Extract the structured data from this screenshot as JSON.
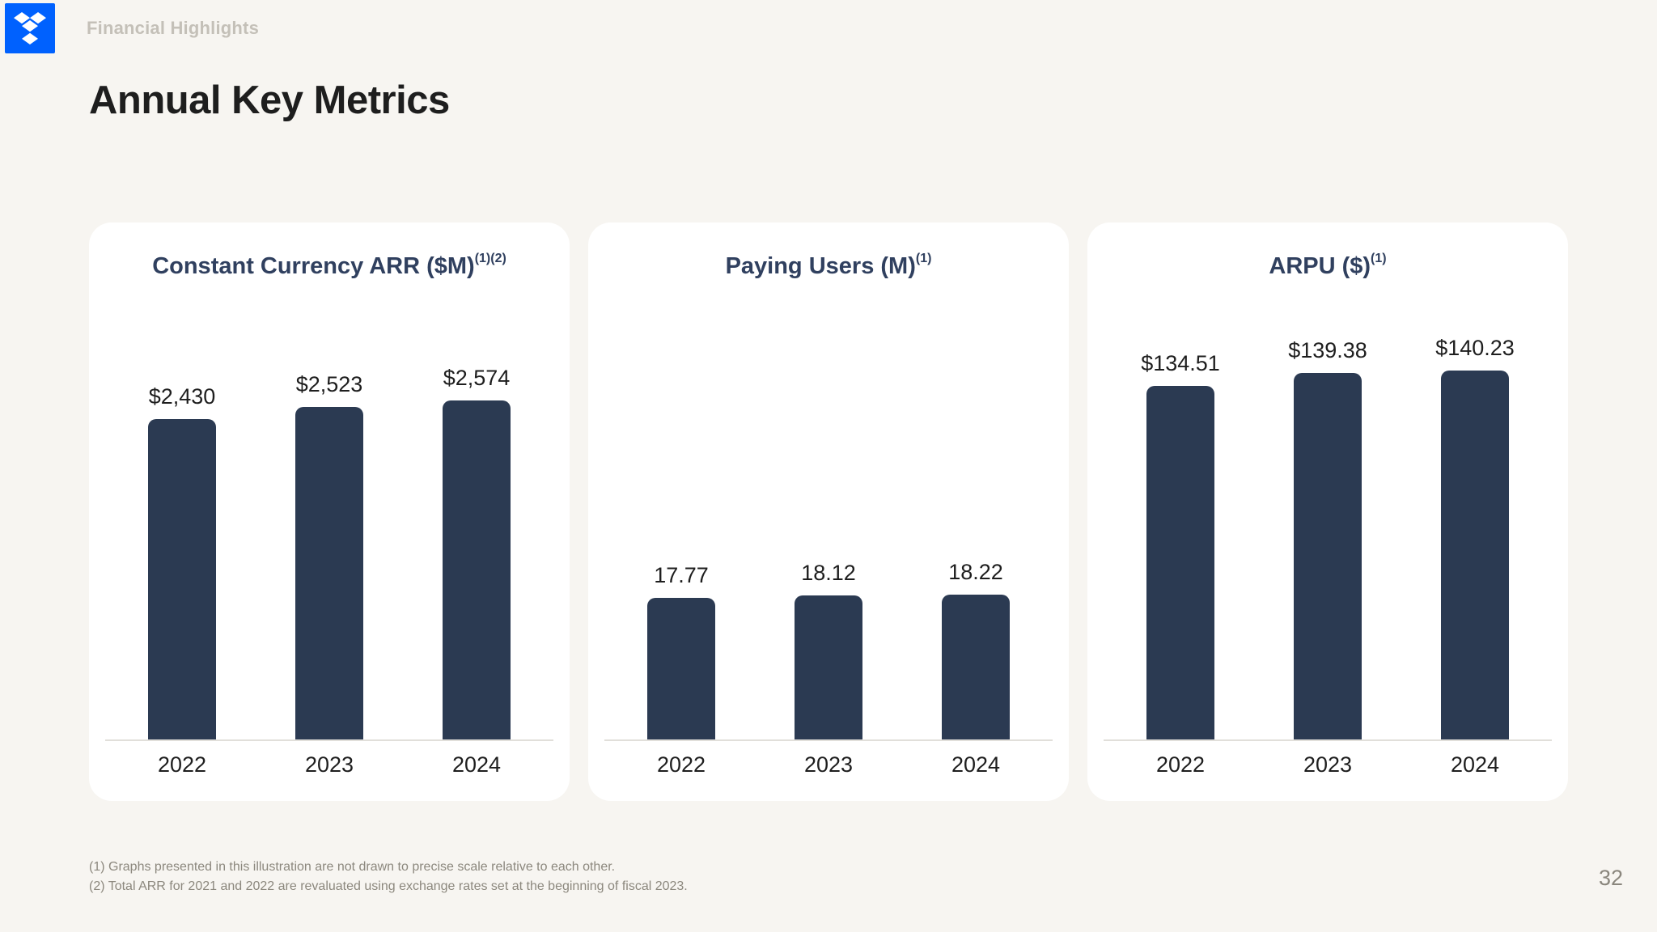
{
  "page": {
    "number": "32",
    "background": "#F7F5F1"
  },
  "header": {
    "logo": "dropbox-logo",
    "logo_color": "#0061FE",
    "breadcrumb": "Financial Highlights"
  },
  "title": "Annual Key Metrics",
  "colors": {
    "bar": "#2B3A52",
    "card_title": "#30405F",
    "text_dark": "#1E1E1E",
    "muted": "#8C887E",
    "breadcrumb": "#C4C0B8",
    "baseline": "#E1DFDA",
    "card_background": "#FFFFFF"
  },
  "chart_data": [
    {
      "type": "bar",
      "title": "Constant Currency ARR ($M)",
      "title_superscript": "(1)(2)",
      "categories": [
        "2022",
        "2023",
        "2024"
      ],
      "values": [
        2430,
        2523,
        2574
      ],
      "value_labels": [
        "$2,430",
        "$2,523",
        "$2,574"
      ],
      "xlabel": "",
      "ylabel": "",
      "ylim": [
        0,
        2574
      ],
      "grid": false,
      "legend": false
    },
    {
      "type": "bar",
      "title": "Paying Users (M)",
      "title_superscript": "(1)",
      "categories": [
        "2022",
        "2023",
        "2024"
      ],
      "values": [
        17.77,
        18.12,
        18.22
      ],
      "value_labels": [
        "17.77",
        "18.12",
        "18.22"
      ],
      "xlabel": "",
      "ylabel": "",
      "ylim": [
        0,
        18.22
      ],
      "grid": false,
      "legend": false
    },
    {
      "type": "bar",
      "title": "ARPU ($)",
      "title_superscript": "(1)",
      "categories": [
        "2022",
        "2023",
        "2024"
      ],
      "values": [
        134.51,
        139.38,
        140.23
      ],
      "value_labels": [
        "$134.51",
        "$139.38",
        "$140.23"
      ],
      "xlabel": "",
      "ylabel": "",
      "ylim": [
        0,
        140.23
      ],
      "grid": false,
      "legend": false
    }
  ],
  "footnotes": [
    "(1) Graphs presented in this illustration are not drawn to precise scale relative to each other.",
    "(2) Total ARR for 2021 and 2022 are revaluated using exchange rates set at the beginning of fiscal 2023."
  ]
}
